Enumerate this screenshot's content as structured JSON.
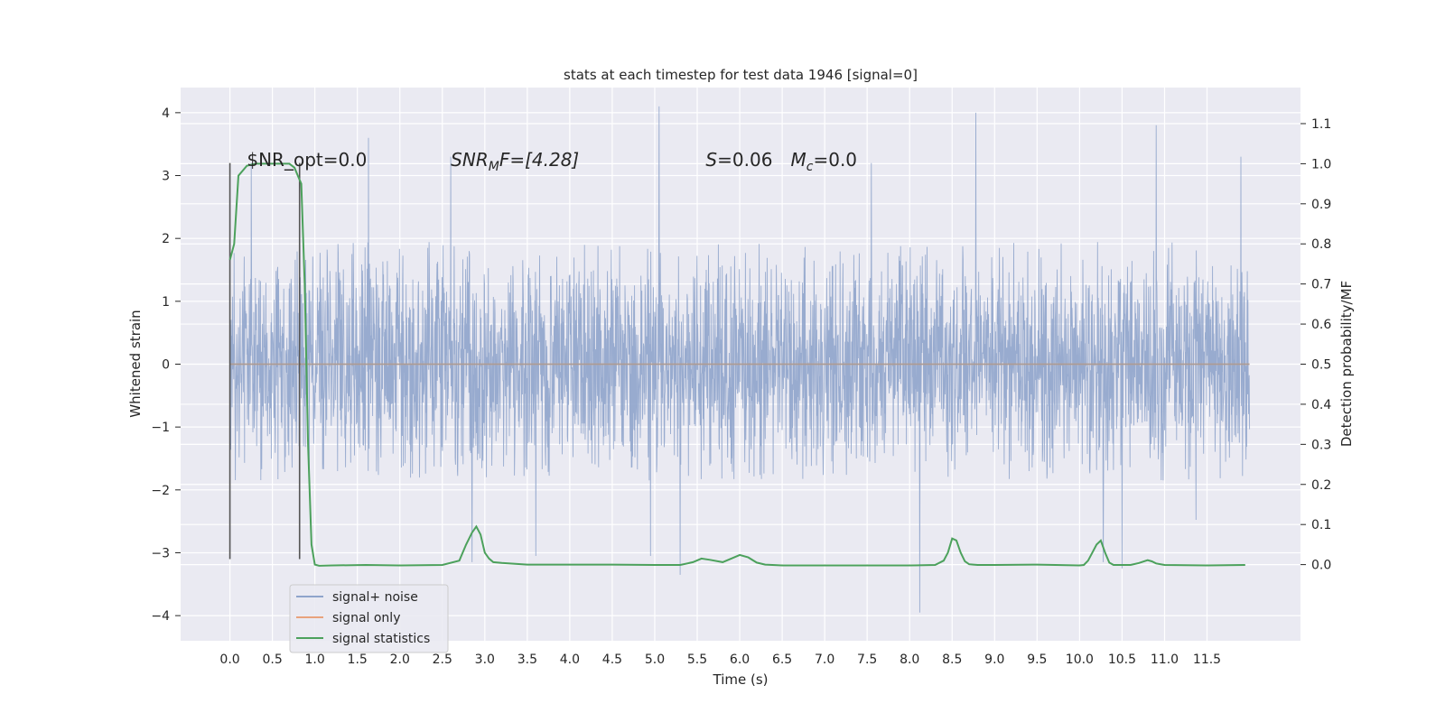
{
  "chart_data": {
    "type": "line",
    "title": "stats at each timestep for test data 1946 [signal=0]",
    "xlabel": "Time (s)",
    "ylabel": "Whitened strain",
    "y2label": "Detection probability/MF",
    "xlim": [
      -0.58,
      12.6
    ],
    "ylim": [
      -4.4,
      4.4
    ],
    "y2lim": [
      -0.19,
      1.19
    ],
    "grid": true,
    "legend_position": "lower-left",
    "x_ticks": [
      0.0,
      0.5,
      1.0,
      1.5,
      2.0,
      2.5,
      3.0,
      3.5,
      4.0,
      4.5,
      5.0,
      5.5,
      6.0,
      6.5,
      7.0,
      7.5,
      8.0,
      8.5,
      9.0,
      9.5,
      10.0,
      10.5,
      11.0,
      11.5
    ],
    "x_tick_labels": [
      "0.0",
      "0.5",
      "1.0",
      "1.5",
      "2.0",
      "2.5",
      "3.0",
      "3.5",
      "4.0",
      "4.5",
      "5.0",
      "5.5",
      "6.0",
      "6.5",
      "7.0",
      "7.5",
      "8.0",
      "8.5",
      "9.0",
      "9.5",
      "10.0",
      "10.5",
      "11.0",
      "11.5"
    ],
    "y_ticks": [
      -4,
      -3,
      -2,
      -1,
      0,
      1,
      2,
      3,
      4
    ],
    "y_tick_labels": [
      "−4",
      "−3",
      "−2",
      "−1",
      "0",
      "1",
      "2",
      "3",
      "4"
    ],
    "y2_ticks": [
      0.0,
      0.1,
      0.2,
      0.3,
      0.4,
      0.5,
      0.6,
      0.7,
      0.8,
      0.9,
      1.0,
      1.1
    ],
    "y2_tick_labels": [
      "0.0",
      "0.1",
      "0.2",
      "0.3",
      "0.4",
      "0.5",
      "0.6",
      "0.7",
      "0.8",
      "0.9",
      "1.0",
      "1.1"
    ],
    "annotations": [
      {
        "text": "$NR_opt=0.0",
        "x": 0.2,
        "y": 3.25
      },
      {
        "text": "SNR",
        "sub": "M",
        "suffix": "F=[4.28]",
        "x": 2.6,
        "y": 3.25
      },
      {
        "text": "S",
        "suffix": "=0.06",
        "x": 5.6,
        "y": 3.25
      },
      {
        "text": "M",
        "sub": "c",
        "suffix": "=0.0",
        "x": 6.6,
        "y": 3.25
      }
    ],
    "vlines": [
      {
        "x": 0.0,
        "y_min": -3.1,
        "y_max": 3.2
      },
      {
        "x": 0.82,
        "y_min": -3.1,
        "y_max": 3.2
      }
    ],
    "series": [
      {
        "name": "signal+ noise",
        "axis": "left",
        "color": "#8fa4cb",
        "x_range": [
          0.0,
          12.0
        ],
        "typical_envelope": [
          -1.85,
          1.95
        ],
        "peaks": [
          {
            "x": 0.25,
            "y": 3.2
          },
          {
            "x": 1.63,
            "y": 3.6
          },
          {
            "x": 2.6,
            "y": 3.3
          },
          {
            "x": 5.05,
            "y": 4.1
          },
          {
            "x": 7.55,
            "y": 3.2
          },
          {
            "x": 8.78,
            "y": 4.0
          },
          {
            "x": 10.9,
            "y": 3.8
          },
          {
            "x": 11.9,
            "y": 3.3
          }
        ],
        "troughs": [
          {
            "x": 2.85,
            "y": -3.15
          },
          {
            "x": 3.6,
            "y": -3.05
          },
          {
            "x": 4.95,
            "y": -3.05
          },
          {
            "x": 5.3,
            "y": -3.35
          },
          {
            "x": 8.12,
            "y": -3.95
          },
          {
            "x": 10.28,
            "y": -3.15
          },
          {
            "x": 10.5,
            "y": -3.25
          }
        ]
      },
      {
        "name": "signal only",
        "axis": "left",
        "color": "#e8a27c",
        "x": [
          0.0,
          12.0
        ],
        "y": [
          0.0,
          0.0
        ]
      },
      {
        "name": "signal statistics",
        "axis": "right",
        "color": "#4ca15c",
        "x": [
          0.0,
          0.05,
          0.1,
          0.2,
          0.3,
          0.45,
          0.6,
          0.7,
          0.76,
          0.8,
          0.84,
          0.88,
          0.92,
          0.96,
          1.0,
          1.05,
          1.2,
          1.6,
          2.0,
          2.5,
          2.7,
          2.78,
          2.85,
          2.9,
          2.95,
          3.0,
          3.05,
          3.1,
          3.2,
          3.5,
          4.0,
          4.5,
          5.0,
          5.3,
          5.45,
          5.55,
          5.65,
          5.8,
          5.9,
          6.0,
          6.1,
          6.2,
          6.3,
          6.5,
          7.0,
          7.5,
          8.0,
          8.3,
          8.4,
          8.45,
          8.5,
          8.55,
          8.6,
          8.65,
          8.7,
          8.75,
          8.8,
          8.9,
          9.0,
          9.5,
          10.0,
          10.05,
          10.1,
          10.15,
          10.2,
          10.25,
          10.3,
          10.35,
          10.4,
          10.6,
          10.7,
          10.8,
          10.85,
          10.9,
          11.0,
          11.5,
          11.95
        ],
        "y": [
          0.76,
          0.8,
          0.97,
          0.995,
          1.0,
          1.0,
          1.0,
          1.0,
          0.99,
          0.97,
          0.95,
          0.7,
          0.3,
          0.05,
          0.0,
          -0.003,
          -0.002,
          -0.001,
          -0.002,
          -0.001,
          0.01,
          0.05,
          0.08,
          0.095,
          0.075,
          0.03,
          0.015,
          0.006,
          0.004,
          0.0,
          0.0,
          0.0,
          -0.001,
          -0.001,
          0.006,
          0.015,
          0.012,
          0.006,
          0.015,
          0.024,
          0.018,
          0.005,
          0.0,
          -0.002,
          -0.002,
          -0.002,
          -0.002,
          -0.001,
          0.01,
          0.03,
          0.065,
          0.06,
          0.03,
          0.008,
          0.001,
          0.0,
          -0.001,
          -0.001,
          -0.001,
          0.0,
          -0.002,
          -0.001,
          0.01,
          0.03,
          0.05,
          0.06,
          0.03,
          0.005,
          -0.001,
          -0.001,
          0.004,
          0.011,
          0.008,
          0.003,
          -0.001,
          -0.002,
          -0.001
        ]
      }
    ]
  }
}
